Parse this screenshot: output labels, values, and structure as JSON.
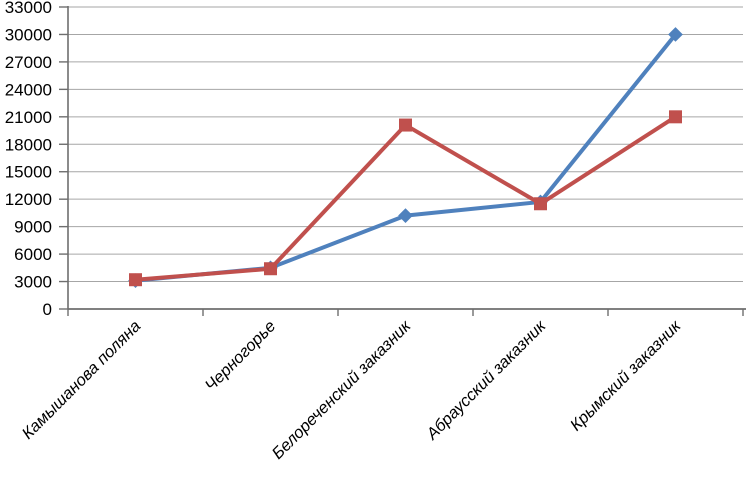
{
  "chart_data": {
    "type": "line",
    "title": "",
    "xlabel": "",
    "ylabel": "",
    "categories": [
      "Камышанова поляна",
      "Черногорье",
      "Белореченский заказник",
      "Абраусский заказник",
      "Крымский заказник"
    ],
    "series": [
      {
        "name": "blue-diamond-series",
        "color": "#4F81BD",
        "marker": "diamond",
        "line_width": 4,
        "values": [
          3100,
          4500,
          10200,
          11700,
          30000
        ]
      },
      {
        "name": "red-square-series",
        "color": "#C0504D",
        "marker": "square",
        "line_width": 4,
        "values": [
          3200,
          4400,
          20100,
          11500,
          21000
        ]
      }
    ],
    "ylim": [
      0,
      33000
    ],
    "ytick_step": 3000,
    "ytick_labels": [
      "0",
      "3000",
      "6000",
      "9000",
      "12000",
      "15000",
      "18000",
      "21000",
      "24000",
      "27000",
      "30000",
      "33000"
    ],
    "grid": "horizontal",
    "legend_position": "none",
    "gridline_color": "#A6A6A6",
    "axis_color": "#6E6E6E",
    "tick_label_color": "#000000",
    "category_label_style": "italic",
    "category_label_rotation_deg": -45
  }
}
